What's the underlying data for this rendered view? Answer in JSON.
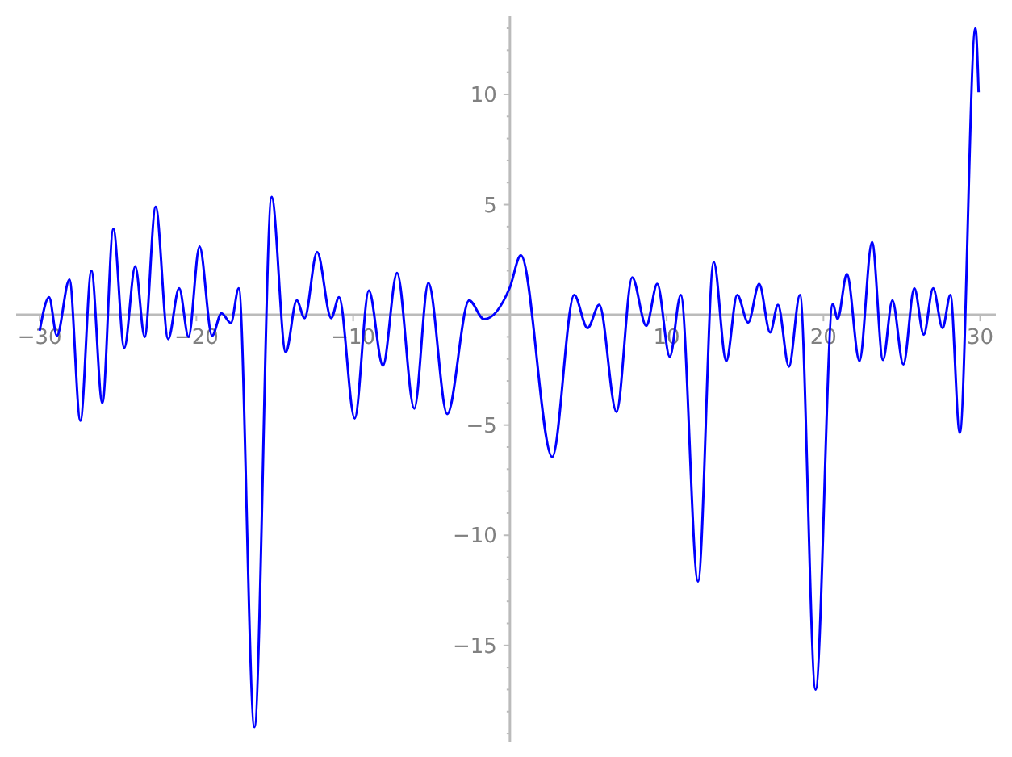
{
  "chart_data": {
    "type": "line",
    "xlim": [
      -31.5,
      31
    ],
    "ylim": [
      -19.4,
      13.55
    ],
    "xticks": [
      -30,
      -20,
      -10,
      10,
      20,
      30
    ],
    "yticks": [
      -15,
      -10,
      -5,
      5,
      10,
      {
        "value": -19,
        "label": null
      },
      {
        "value": -18,
        "label": null
      },
      {
        "value": -17,
        "label": null
      },
      {
        "value": -16,
        "label": null
      },
      {
        "value": -14,
        "label": null
      },
      {
        "value": -13,
        "label": null
      },
      {
        "value": -12,
        "label": null
      },
      {
        "value": -11,
        "label": null
      },
      {
        "value": -9,
        "label": null
      },
      {
        "value": -8,
        "label": null
      },
      {
        "value": -7,
        "label": null
      },
      {
        "value": -6,
        "label": null
      },
      {
        "value": -4,
        "label": null
      },
      {
        "value": -3,
        "label": null
      },
      {
        "value": -2,
        "label": null
      },
      {
        "value": -1,
        "label": null
      },
      {
        "value": 1,
        "label": null
      },
      {
        "value": 2,
        "label": null
      },
      {
        "value": 3,
        "label": null
      },
      {
        "value": 4,
        "label": null
      },
      {
        "value": 6,
        "label": null
      },
      {
        "value": 7,
        "label": null
      },
      {
        "value": 8,
        "label": null
      },
      {
        "value": 9,
        "label": null
      },
      {
        "value": 11,
        "label": null
      },
      {
        "value": 12,
        "label": null
      },
      {
        "value": 13,
        "label": null
      }
    ],
    "grid": false,
    "marker": "none",
    "line_style": "solid",
    "series": [
      {
        "color": "#0000ff",
        "x": [
          -30,
          -29.4,
          -28.9,
          -28.1,
          -27.4,
          -26.7,
          -26.0,
          -25.3,
          -24.6,
          -23.9,
          -23.3,
          -22.6,
          -21.8,
          -21.1,
          -20.5,
          -19.8,
          -19.0,
          -18.4,
          -17.8,
          -17.3,
          -16.3,
          -15.2,
          -14.3,
          -13.6,
          -13.1,
          -12.3,
          -11.4,
          -10.9,
          -9.9,
          -9.0,
          -8.1,
          -7.2,
          -6.1,
          -5.2,
          -4.0,
          -2.6,
          -1.65,
          0,
          0.7,
          2.7,
          4.1,
          4.95,
          5.7,
          6.8,
          7.8,
          8.7,
          9.4,
          10.2,
          10.9,
          12.0,
          13.0,
          13.8,
          14.5,
          15.2,
          15.9,
          16.6,
          17.1,
          17.8,
          18.5,
          19.5,
          20.6,
          20.9,
          21.5,
          22.3,
          23.1,
          23.8,
          24.4,
          25.1,
          25.8,
          26.4,
          27.0,
          27.6,
          28.1,
          28.7,
          29.7,
          29.9
        ],
        "values": [
          -0.73,
          0.8,
          -0.95,
          1.6,
          -4.8,
          2.0,
          -4.0,
          3.9,
          -1.5,
          2.2,
          -1.0,
          4.9,
          -1.1,
          1.2,
          -1.0,
          3.1,
          -0.95,
          0.07,
          -0.37,
          1.2,
          -18.7,
          5.35,
          -1.7,
          0.65,
          -0.15,
          2.85,
          -0.15,
          0.8,
          -4.7,
          1.1,
          -2.3,
          1.9,
          -4.25,
          1.45,
          -4.5,
          0.65,
          -0.2,
          1.25,
          2.7,
          -6.45,
          0.9,
          -0.6,
          0.45,
          -4.4,
          1.7,
          -0.5,
          1.4,
          -1.9,
          0.9,
          -12.1,
          2.4,
          -2.1,
          0.9,
          -0.35,
          1.4,
          -0.8,
          0.45,
          -2.35,
          0.9,
          -17.0,
          0.5,
          -0.2,
          1.85,
          -2.1,
          3.3,
          -2.05,
          0.65,
          -2.25,
          1.2,
          -0.9,
          1.2,
          -0.6,
          0.9,
          -5.35,
          13.0,
          10.1
        ]
      }
    ]
  }
}
